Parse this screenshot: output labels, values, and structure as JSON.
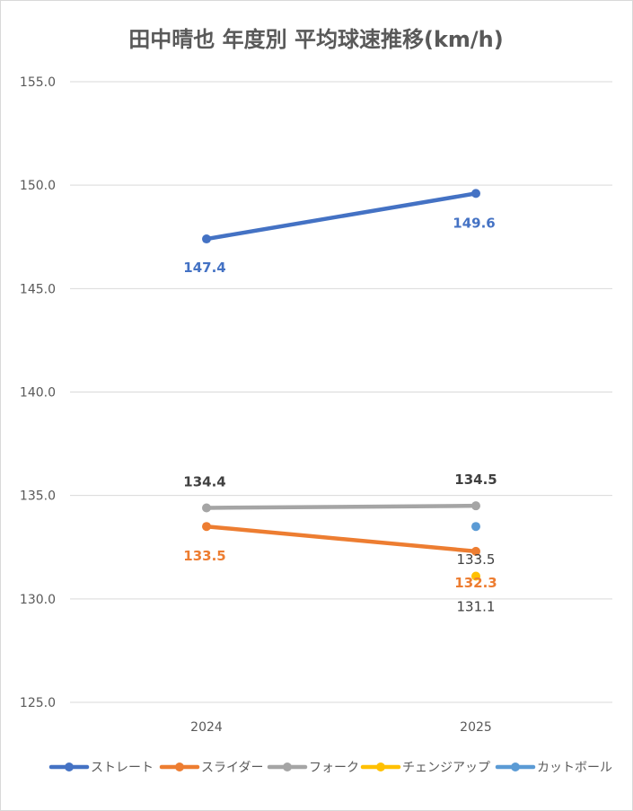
{
  "chart_data": {
    "type": "line",
    "title": "田中晴也 年度別 平均球速推移(km/h)",
    "categories": [
      "2024",
      "2025"
    ],
    "ylim": [
      125.0,
      155.0
    ],
    "yticks": [
      "125.0",
      "130.0",
      "135.0",
      "140.0",
      "145.0",
      "150.0",
      "155.0"
    ],
    "grid": true,
    "legend_position": "bottom",
    "series": [
      {
        "name": "ストレート",
        "color": "#4472C4",
        "values": [
          147.4,
          149.6
        ],
        "labels": [
          "147.4",
          "149.6"
        ]
      },
      {
        "name": "スライダー",
        "color": "#ED7D31",
        "values": [
          133.5,
          132.3
        ],
        "labels": [
          "133.5",
          "132.3"
        ]
      },
      {
        "name": "フォーク",
        "color": "#A5A5A5",
        "values": [
          134.4,
          134.5
        ],
        "labels": [
          "134.4",
          "134.5"
        ]
      },
      {
        "name": "チェンジアップ",
        "color": "#FFC000",
        "values": [
          null,
          131.1
        ],
        "labels": [
          "",
          "131.1"
        ]
      },
      {
        "name": "カットボール",
        "color": "#5B9BD5",
        "values": [
          null,
          133.5
        ],
        "labels": [
          "",
          "133.5"
        ]
      }
    ]
  }
}
